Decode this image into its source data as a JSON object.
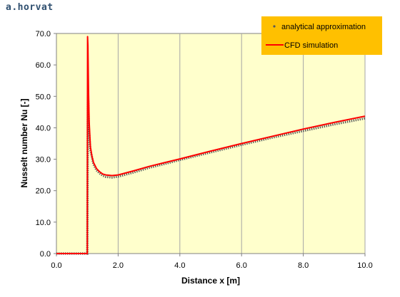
{
  "watermark": "a.horvat",
  "chart_data": {
    "type": "line",
    "xlabel": "Distance x [m]",
    "ylabel": "Nusselt number Nu [-]",
    "xlim": [
      0,
      10
    ],
    "ylim": [
      0,
      70
    ],
    "x_ticks": [
      "0.0",
      "2.0",
      "4.0",
      "6.0",
      "8.0",
      "10.0"
    ],
    "y_ticks": [
      "0.0",
      "10.0",
      "20.0",
      "30.0",
      "40.0",
      "50.0",
      "60.0",
      "70.0"
    ],
    "grid": "vertical",
    "legend_position": "top-right",
    "plot_background": "#ffffcc",
    "legend_background": "#ffc000",
    "series": [
      {
        "name": "analytical approximation",
        "style": "dotted",
        "color": "#595959",
        "x": [
          0.0,
          0.5,
          0.99,
          1.0,
          1.02,
          1.05,
          1.1,
          1.2,
          1.3,
          1.4,
          1.5,
          1.6,
          1.8,
          2.0,
          2.5,
          3.0,
          3.5,
          4.0,
          5.0,
          6.0,
          7.0,
          8.0,
          9.0,
          10.0
        ],
        "y": [
          0.0,
          0.0,
          0.0,
          0.0,
          52.0,
          40.0,
          33.0,
          28.5,
          26.5,
          25.5,
          24.8,
          24.4,
          24.2,
          24.5,
          25.8,
          27.3,
          28.5,
          29.8,
          32.2,
          34.6,
          36.9,
          39.0,
          41.1,
          43.0
        ]
      },
      {
        "name": "CFD simulation",
        "style": "solid",
        "color": "#ff0000",
        "x": [
          0.0,
          0.5,
          0.99,
          1.0,
          1.01,
          1.02,
          1.04,
          1.06,
          1.1,
          1.15,
          1.2,
          1.3,
          1.4,
          1.5,
          1.6,
          1.8,
          2.0,
          2.5,
          3.0,
          3.5,
          4.0,
          5.0,
          6.0,
          7.0,
          8.0,
          9.0,
          10.0
        ],
        "y": [
          0.0,
          0.0,
          0.0,
          0.0,
          69.0,
          66.0,
          52.0,
          42.0,
          34.0,
          31.0,
          29.0,
          27.0,
          26.0,
          25.3,
          25.0,
          24.8,
          25.0,
          26.3,
          27.7,
          28.9,
          30.1,
          32.6,
          35.0,
          37.3,
          39.6,
          41.7,
          43.7
        ]
      }
    ]
  }
}
